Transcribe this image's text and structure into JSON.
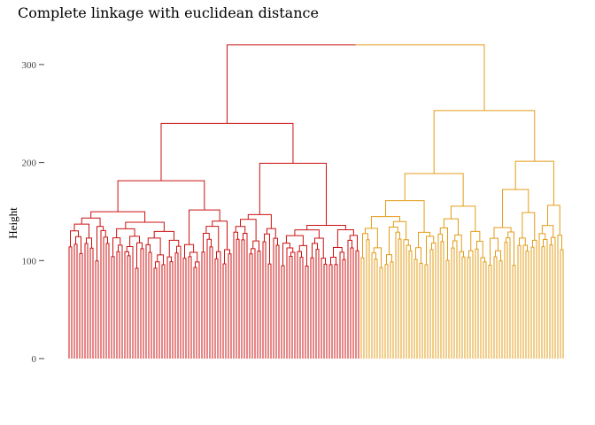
{
  "chart_data": {
    "type": "dendrogram",
    "title": "Complete linkage with euclidean distance",
    "xlabel": "",
    "ylabel": "Height",
    "ylim": [
      0,
      325
    ],
    "yticks": [
      0,
      100,
      200,
      300
    ],
    "grid": false,
    "clusters": [
      {
        "color": "#cc1111",
        "leaves": 110
      },
      {
        "color": "#e39c17",
        "leaves": 77
      }
    ],
    "root_height": 320,
    "merges": [
      {
        "cluster": 0,
        "height": 240,
        "left": 192,
        "right": 227
      },
      {
        "cluster": 0,
        "height": 193,
        "left": 169,
        "right": 172
      },
      {
        "cluster": 0,
        "height": 227,
        "left": 152,
        "right": 151
      },
      {
        "cluster": 0,
        "height": 169,
        "left": 140,
        "right": 136
      },
      {
        "cluster": 0,
        "height": 172,
        "left": 155,
        "right": 171
      },
      {
        "cluster": 0,
        "height": 140,
        "left": 126,
        "right": 125
      },
      {
        "cluster": 0,
        "height": 136,
        "left": 0,
        "right": 0
      },
      {
        "cluster": 0,
        "height": 155,
        "left": 0,
        "right": 0
      },
      {
        "cluster": 0,
        "height": 171,
        "left": 153,
        "right": 149
      },
      {
        "cluster": 0,
        "height": 152,
        "left": 0,
        "right": 0
      },
      {
        "cluster": 0,
        "height": 151,
        "left": 0,
        "right": 0
      },
      {
        "cluster": 1,
        "height": 253,
        "left": 197,
        "right": 212
      },
      {
        "cluster": 1,
        "height": 197,
        "left": 187,
        "right": 189
      },
      {
        "cluster": 1,
        "height": 212,
        "left": 170,
        "right": 173
      },
      {
        "cluster": 1,
        "height": 187,
        "left": 163,
        "right": 0
      },
      {
        "cluster": 1,
        "height": 189,
        "left": 164,
        "right": 170
      },
      {
        "cluster": 1,
        "height": 164,
        "left": 145,
        "right": 137
      },
      {
        "cluster": 1,
        "height": 170,
        "left": 150,
        "right": 158
      },
      {
        "cluster": 1,
        "height": 170,
        "left": 0,
        "right": 0
      },
      {
        "cluster": 1,
        "height": 173,
        "left": 0,
        "right": 0
      }
    ]
  }
}
